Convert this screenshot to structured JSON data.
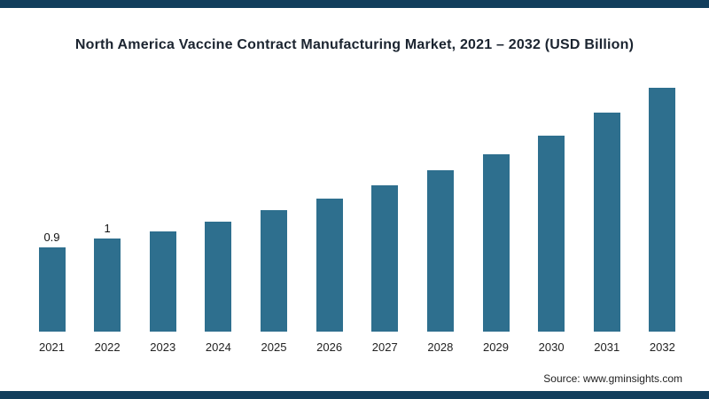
{
  "page": {
    "title": "North America Vaccine Contract Manufacturing Market, 2021 – 2032 (USD Billion)",
    "source": "Source: www.gminsights.com"
  },
  "colors": {
    "bar": "#2e6f8e",
    "frame": "#123e5c"
  },
  "chart_data": {
    "type": "bar",
    "title": "North America Vaccine Contract Manufacturing Market, 2021 – 2032 (USD Billion)",
    "categories": [
      "2021",
      "2022",
      "2023",
      "2024",
      "2025",
      "2026",
      "2027",
      "2028",
      "2029",
      "2030",
      "2031",
      "2032"
    ],
    "values": [
      0.9,
      1.0,
      1.08,
      1.18,
      1.3,
      1.43,
      1.57,
      1.73,
      1.9,
      2.1,
      2.35,
      2.62
    ],
    "data_labels": [
      "0.9",
      "1",
      "",
      "",
      "",
      "",
      "",
      "",
      "",
      "",
      "",
      ""
    ],
    "xlabel": "",
    "ylabel": "",
    "ylim": [
      0,
      3
    ],
    "grid": false,
    "legend": false,
    "bar_color": "#2e6f8e",
    "source": "Source: www.gminsights.com"
  }
}
